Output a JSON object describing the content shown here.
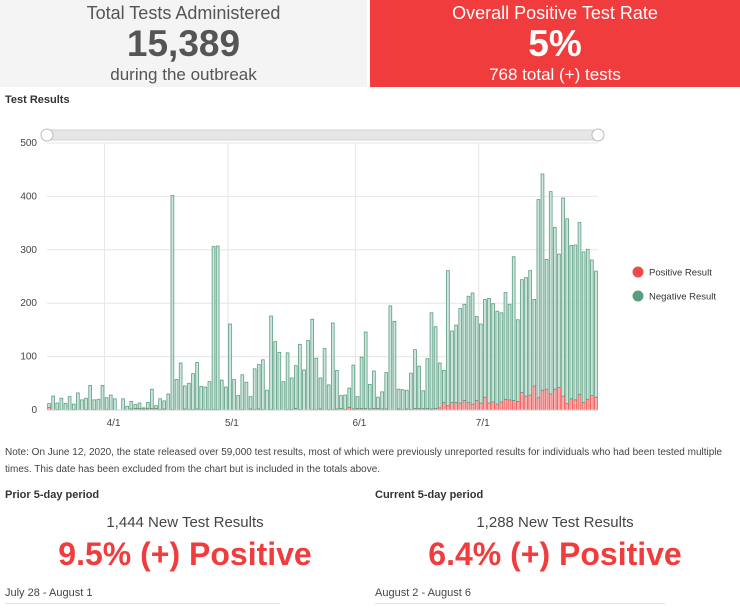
{
  "kpis": {
    "total_tests": {
      "label": "Total Tests Administered",
      "value": "15,389",
      "sub": "during the outbreak"
    },
    "positive_rate": {
      "label": "Overall Positive Test Rate",
      "value": "5%",
      "sub": "768 total (+) tests"
    }
  },
  "section_title": "Test Results",
  "note": "Note: On June 12, 2020, the state released over 59,000 test results, most of which were previously unreported results for individuals who had been tested multiple times. This date has been excluded from the chart but is included in the totals above.",
  "prior_period": {
    "title": "Prior 5-day period",
    "count": "1,444 New Test Results",
    "pct": "9.5% (+) Positive",
    "dates": "July 28 - August 1"
  },
  "current_period": {
    "title": "Current 5-day period",
    "count": "1,288 New Test Results",
    "pct": "6.4% (+) Positive",
    "dates": "August 2 - August 6"
  },
  "colors": {
    "positive": "#f24a4a",
    "negative": "#5a9e82",
    "negative_fill": "#cde5da",
    "positive_fill": "#f6b3b3",
    "accent": "#f03c3c"
  },
  "chart_data": {
    "type": "bar",
    "stacked": true,
    "title": "Test Results",
    "xlabel": "",
    "ylabel": "",
    "ylim": [
      0,
      500
    ],
    "yticks": [
      0,
      100,
      200,
      300,
      400,
      500
    ],
    "xticks": [
      {
        "label": "4/1",
        "index": 14
      },
      {
        "label": "5/1",
        "index": 44
      },
      {
        "label": "6/1",
        "index": 75
      },
      {
        "label": "7/1",
        "index": 105
      }
    ],
    "legend": [
      "Positive Result",
      "Negative Result"
    ],
    "legend_position": "right",
    "series": [
      {
        "name": "Positive Result",
        "values": [
          5,
          0,
          1,
          0,
          0,
          0,
          1,
          0,
          0,
          1,
          0,
          1,
          0,
          0,
          1,
          0,
          0,
          0,
          0,
          0,
          2,
          3,
          3,
          2,
          3,
          3,
          3,
          1,
          2,
          0,
          1,
          0,
          0,
          2,
          1,
          1,
          2,
          1,
          1,
          1,
          1,
          1,
          0,
          0,
          0,
          0,
          0,
          1,
          0,
          2,
          1,
          2,
          1,
          0,
          1,
          0,
          0,
          0,
          1,
          1,
          3,
          1,
          0,
          0,
          1,
          1,
          2,
          0,
          1,
          1,
          2,
          3,
          1,
          5,
          2,
          3,
          3,
          3,
          2,
          3,
          3,
          2,
          2,
          0,
          0,
          2,
          1,
          2,
          1,
          3,
          3,
          3,
          3,
          2,
          3,
          4,
          14,
          8,
          14,
          14,
          13,
          18,
          14,
          11,
          18,
          13,
          24,
          13,
          15,
          11,
          15,
          20,
          19,
          18,
          16,
          33,
          26,
          28,
          45,
          23,
          37,
          39,
          30,
          39,
          42,
          26,
          12,
          21,
          19,
          29,
          14,
          20,
          27,
          24
        ]
      },
      {
        "name": "Negative Result",
        "values": [
          7,
          26,
          12,
          22,
          12,
          25,
          10,
          32,
          19,
          21,
          46,
          18,
          20,
          46,
          22,
          28,
          21,
          0,
          21,
          7,
          14,
          7,
          10,
          2,
          11,
          36,
          5,
          20,
          15,
          30,
          401,
          57,
          88,
          43,
          49,
          67,
          87,
          43,
          42,
          52,
          305,
          306,
          56,
          43,
          161,
          57,
          27,
          65,
          52,
          23,
          76,
          83,
          93,
          37,
          175,
          128,
          108,
          53,
          106,
          59,
          80,
          122,
          75,
          130,
          169,
          96,
          58,
          115,
          46,
          162,
          72,
          24,
          27,
          36,
          82,
          22,
          96,
          143,
          46,
          70,
          21,
          32,
          68,
          195,
          166,
          37,
          37,
          35,
          68,
          110,
          79,
          33,
          93,
          180,
          153,
          84,
          60,
          253,
          134,
          145,
          177,
          180,
          199,
          208,
          157,
          148,
          183,
          196,
          184,
          174,
          167,
          200,
          179,
          269,
          153,
          211,
          222,
          233,
          162,
          371,
          405,
          243,
          379,
          303,
          250,
          371,
          346,
          287,
          290,
          322,
          282,
          281,
          254,
          236
        ]
      }
    ]
  }
}
